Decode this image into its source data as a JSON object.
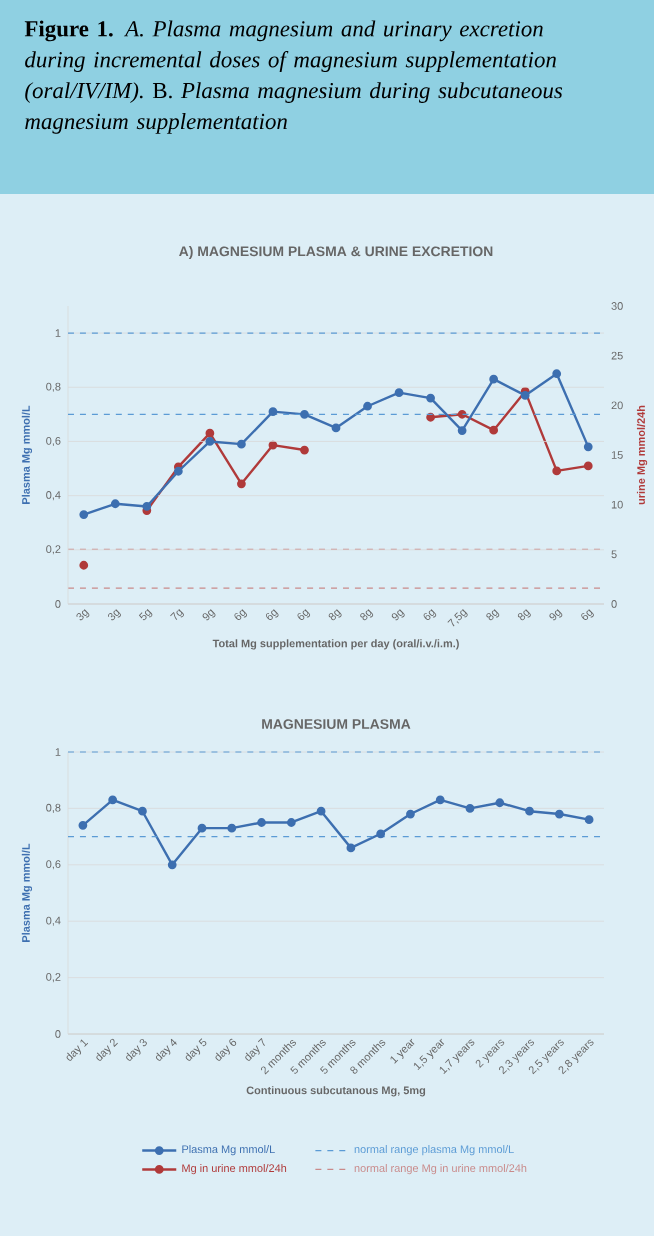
{
  "chart_data": [
    {
      "type": "line",
      "title": "A) MAGNESIUM PLASMA & URINE EXCRETION",
      "annotations": [
        "**Figure 1.** *A. Plasma magnesium and urinary excretion during incremental doses of magnesium supplementation (oral/IV/IM).* B. *Plasma magnesium during subcutaneous magnesium supplementation*"
      ],
      "xlabel": "Total Mg supplementation per day (oral/i.v./i.m.)",
      "ylabel": "Plasma Mg mmol/L",
      "y2label": "urine Mg mmol/24h",
      "categories": [
        "3g",
        "3g",
        "5g",
        "7g",
        "9g",
        "6g",
        "6g",
        "6g",
        "8g",
        "8g",
        "9g",
        "6g",
        "7,5g",
        "8g",
        "8g",
        "9g",
        "6g"
      ],
      "series": [
        {
          "name": "Plasma Mg mmol/L",
          "color": "#3d6fb0",
          "values": [
            0.33,
            0.37,
            0.36,
            0.49,
            0.6,
            0.59,
            0.71,
            0.7,
            0.65,
            0.73,
            0.78,
            0.76,
            0.64,
            0.83,
            0.77,
            0.85,
            0.58
          ]
        },
        {
          "name": "Mg in urine mmol/24h",
          "color": "#b03a3a",
          "axis": "y2",
          "values": [
            3.9,
            null,
            9.4,
            13.8,
            17.2,
            12.1,
            16.0,
            15.5,
            null,
            null,
            null,
            18.8,
            19.1,
            17.5,
            21.4,
            13.4,
            13.9
          ]
        }
      ],
      "ylim": [
        0,
        1.1
      ],
      "yticks": [
        0,
        {
          "value": 0.2,
          "label": "0,2"
        },
        {
          "value": 0.4,
          "label": "0,4"
        },
        {
          "value": 0.6,
          "label": "0,6"
        },
        {
          "value": 0.8,
          "label": "0,8"
        },
        1
      ],
      "y2lim": [
        0,
        30
      ],
      "y2ticks": [
        0,
        5,
        10,
        15,
        20,
        25,
        30
      ],
      "grid": "y",
      "legend": "bottom",
      "marker": "circle",
      "line_style": "solid",
      "ref_lines": [
        {
          "axis": "y",
          "value": 0.7,
          "label": "normal range plasma Mg mmol/L",
          "color": "#5b9bd5",
          "line_style": "dashed"
        },
        {
          "axis": "y",
          "value": 1,
          "color": "#5b9bd5",
          "line_style": "dashed"
        },
        {
          "axis": "y2",
          "value": 5.5,
          "label": "normal range Mg in urine mmol/24h",
          "color": "#c98a8a",
          "line_style": "dashed"
        },
        {
          "axis": "y2",
          "value": 1.6,
          "color": "#c98a8a",
          "line_style": "dashed"
        }
      ]
    },
    {
      "type": "line",
      "title": "MAGNESIUM PLASMA",
      "xlabel": "Continuous subcutanous Mg, 5mg",
      "ylabel": "Plasma Mg mmol/L",
      "categories": [
        "day 1",
        "day 2",
        "day 3",
        "day 4",
        "day 5",
        "day 6",
        "day 7",
        "2 months",
        "5 months",
        "5 months",
        "8 months",
        "1 year",
        "1,5 year",
        "1,7 years",
        "2 years",
        "2,3 years",
        "2,5 years",
        "2,8 years"
      ],
      "series": [
        {
          "color": "#3d6fb0",
          "values": [
            0.74,
            0.83,
            0.79,
            0.6,
            0.73,
            0.73,
            0.75,
            0.75,
            0.79,
            0.66,
            0.71,
            0.78,
            0.83,
            0.8,
            0.82,
            0.79,
            0.78,
            0.76
          ]
        }
      ],
      "ylim": [
        0,
        1
      ],
      "yticks": [
        0,
        {
          "value": 0.2,
          "label": "0,2"
        },
        {
          "value": 0.4,
          "label": "0,4"
        },
        {
          "value": 0.6,
          "label": "0,6"
        },
        {
          "value": 0.8,
          "label": "0,8"
        },
        1
      ],
      "grid": "y",
      "marker": "circle",
      "line_style": "solid",
      "ref_lines": [
        {
          "axis": "y",
          "value": 0.7,
          "color": "#5b9bd5",
          "line_style": "dashed"
        },
        {
          "axis": "y",
          "value": 1,
          "color": "#5b9bd5",
          "line_style": "dashed"
        }
      ]
    }
  ]
}
